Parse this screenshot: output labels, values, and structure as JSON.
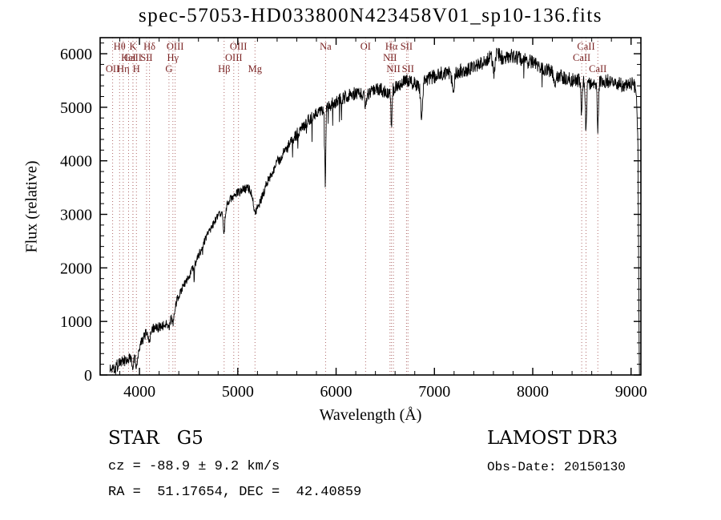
{
  "colors": {
    "spectrum": "#000000",
    "marker_line": "#b06a6a",
    "marker_label": "#7a2222",
    "axis": "#000000",
    "background": "#ffffff"
  },
  "chart_data": {
    "type": "line",
    "title": "spec-57053-HD033800N423458V01_sp10-136.fits",
    "xlabel": "Wavelength (Å)",
    "ylabel": "Flux (relative)",
    "xlim": [
      3600,
      9100
    ],
    "ylim": [
      0,
      6300
    ],
    "xticks": [
      4000,
      5000,
      6000,
      7000,
      8000,
      9000
    ],
    "yticks": [
      0,
      1000,
      2000,
      3000,
      4000,
      5000,
      6000
    ],
    "x_minor_step": 200,
    "y_minor_step": 200,
    "legend": "none",
    "grid": "off",
    "continuum": [
      [
        3700,
        130
      ],
      [
        3715,
        70
      ],
      [
        3730,
        180
      ],
      [
        3745,
        120
      ],
      [
        3760,
        220
      ],
      [
        3775,
        170
      ],
      [
        3790,
        250
      ],
      [
        3810,
        230
      ],
      [
        3830,
        290
      ],
      [
        3850,
        270
      ],
      [
        3870,
        310
      ],
      [
        3890,
        300
      ],
      [
        3910,
        330
      ],
      [
        3930,
        300
      ],
      [
        3950,
        340
      ],
      [
        3970,
        330
      ],
      [
        3990,
        430
      ],
      [
        4010,
        560
      ],
      [
        4030,
        650
      ],
      [
        4050,
        720
      ],
      [
        4070,
        770
      ],
      [
        4090,
        790
      ],
      [
        4110,
        780
      ],
      [
        4130,
        850
      ],
      [
        4150,
        870
      ],
      [
        4170,
        880
      ],
      [
        4190,
        890
      ],
      [
        4210,
        905
      ],
      [
        4230,
        920
      ],
      [
        4250,
        940
      ],
      [
        4270,
        975
      ],
      [
        4290,
        1020
      ],
      [
        4310,
        1080
      ],
      [
        4330,
        1140
      ],
      [
        4350,
        1230
      ],
      [
        4370,
        1330
      ],
      [
        4390,
        1440
      ],
      [
        4410,
        1530
      ],
      [
        4440,
        1640
      ],
      [
        4470,
        1740
      ],
      [
        4500,
        1840
      ],
      [
        4530,
        1940
      ],
      [
        4560,
        2060
      ],
      [
        4590,
        2180
      ],
      [
        4620,
        2320
      ],
      [
        4650,
        2450
      ],
      [
        4680,
        2570
      ],
      [
        4710,
        2690
      ],
      [
        4740,
        2790
      ],
      [
        4770,
        2880
      ],
      [
        4800,
        2960
      ],
      [
        4830,
        3010
      ],
      [
        4860,
        3060
      ],
      [
        4890,
        3160
      ],
      [
        4920,
        3260
      ],
      [
        4950,
        3330
      ],
      [
        4980,
        3380
      ],
      [
        5010,
        3410
      ],
      [
        5040,
        3440
      ],
      [
        5070,
        3470
      ],
      [
        5100,
        3490
      ],
      [
        5130,
        3460
      ],
      [
        5160,
        3350
      ],
      [
        5190,
        3200
      ],
      [
        5220,
        3200
      ],
      [
        5250,
        3340
      ],
      [
        5280,
        3500
      ],
      [
        5310,
        3640
      ],
      [
        5340,
        3760
      ],
      [
        5370,
        3870
      ],
      [
        5400,
        3960
      ],
      [
        5440,
        4070
      ],
      [
        5480,
        4180
      ],
      [
        5520,
        4290
      ],
      [
        5560,
        4400
      ],
      [
        5600,
        4500
      ],
      [
        5640,
        4590
      ],
      [
        5680,
        4670
      ],
      [
        5720,
        4750
      ],
      [
        5760,
        4830
      ],
      [
        5800,
        4900
      ],
      [
        5840,
        4960
      ],
      [
        5880,
        5000
      ],
      [
        5920,
        5030
      ],
      [
        5960,
        5070
      ],
      [
        6000,
        5110
      ],
      [
        6050,
        5160
      ],
      [
        6100,
        5200
      ],
      [
        6150,
        5230
      ],
      [
        6200,
        5260
      ],
      [
        6250,
        5240
      ],
      [
        6300,
        5220
      ],
      [
        6350,
        5300
      ],
      [
        6400,
        5360
      ],
      [
        6450,
        5330
      ],
      [
        6500,
        5300
      ],
      [
        6550,
        5280
      ],
      [
        6600,
        5380
      ],
      [
        6650,
        5440
      ],
      [
        6700,
        5490
      ],
      [
        6750,
        5480
      ],
      [
        6800,
        5440
      ],
      [
        6850,
        5380
      ],
      [
        6900,
        5480
      ],
      [
        6950,
        5540
      ],
      [
        7000,
        5580
      ],
      [
        7050,
        5620
      ],
      [
        7100,
        5650
      ],
      [
        7150,
        5660
      ],
      [
        7200,
        5620
      ],
      [
        7250,
        5660
      ],
      [
        7300,
        5700
      ],
      [
        7350,
        5730
      ],
      [
        7400,
        5760
      ],
      [
        7450,
        5800
      ],
      [
        7500,
        5850
      ],
      [
        7550,
        5910
      ],
      [
        7600,
        5980
      ],
      [
        7640,
        6010
      ],
      [
        7680,
        5930
      ],
      [
        7720,
        5950
      ],
      [
        7760,
        5960
      ],
      [
        7800,
        5940
      ],
      [
        7850,
        5920
      ],
      [
        7900,
        5890
      ],
      [
        7950,
        5860
      ],
      [
        8000,
        5840
      ],
      [
        8050,
        5800
      ],
      [
        8100,
        5750
      ],
      [
        8150,
        5700
      ],
      [
        8200,
        5650
      ],
      [
        8250,
        5600
      ],
      [
        8300,
        5560
      ],
      [
        8350,
        5530
      ],
      [
        8400,
        5510
      ],
      [
        8450,
        5500
      ],
      [
        8500,
        5480
      ],
      [
        8550,
        5460
      ],
      [
        8600,
        5450
      ],
      [
        8650,
        5450
      ],
      [
        8700,
        5470
      ],
      [
        8750,
        5490
      ],
      [
        8800,
        5480
      ],
      [
        8850,
        5450
      ],
      [
        8900,
        5420
      ],
      [
        8950,
        5400
      ],
      [
        9000,
        5440
      ],
      [
        9030,
        5420
      ],
      [
        9055,
        5300
      ],
      [
        9070,
        4200
      ],
      [
        9080,
        1200
      ]
    ],
    "absorption_features": [
      {
        "line": "CaII K",
        "wavelength": 3934,
        "depth": 140,
        "width": 7
      },
      {
        "line": "CaII H",
        "wavelength": 3969,
        "depth": 140,
        "width": 7
      },
      {
        "line": "Hδ",
        "wavelength": 4102,
        "depth": 180,
        "width": 9
      },
      {
        "line": "G",
        "wavelength": 4300,
        "depth": 160,
        "width": 14
      },
      {
        "line": "Hγ",
        "wavelength": 4340,
        "depth": 230,
        "width": 9
      },
      {
        "line": "Hβ",
        "wavelength": 4861,
        "depth": 380,
        "width": 8
      },
      {
        "line": "Mg",
        "wavelength": 5175,
        "depth": 200,
        "width": 16
      },
      {
        "line": "Na",
        "wavelength": 5890,
        "depth": 1450,
        "width": 5
      },
      {
        "line": "OI",
        "wavelength": 6300,
        "depth": 180,
        "width": 7
      },
      {
        "line": "Hα",
        "wavelength": 6563,
        "depth": 650,
        "width": 6
      },
      {
        "line": "telluric",
        "wavelength": 6870,
        "depth": 620,
        "width": 9
      },
      {
        "line": "telluric",
        "wavelength": 7190,
        "depth": 260,
        "width": 12
      },
      {
        "line": "telluric",
        "wavelength": 7605,
        "depth": 380,
        "width": 10
      },
      {
        "line": "telluric",
        "wavelength": 8230,
        "depth": 250,
        "width": 10
      },
      {
        "line": "CaII",
        "wavelength": 8498,
        "depth": 650,
        "width": 6
      },
      {
        "line": "CaII",
        "wavelength": 8542,
        "depth": 900,
        "width": 6
      },
      {
        "line": "CaII",
        "wavelength": 8662,
        "depth": 850,
        "width": 6
      }
    ],
    "noise": {
      "seed": 1337,
      "base": 22,
      "flux_frac": 0.02,
      "blue_edge": 4700,
      "blue_factor": 0.1,
      "spike_prob": 0.012,
      "spike_scale": 3.0
    },
    "spectral_lines": [
      {
        "label": "OII",
        "wavelength": 3727,
        "row": 3
      },
      {
        "label": "Hθ",
        "wavelength": 3798,
        "row": 1
      },
      {
        "label": "Hη",
        "wavelength": 3835,
        "row": 3
      },
      {
        "label": "HeI",
        "wavelength": 3889,
        "row": 2
      },
      {
        "label": "CaII",
        "wavelength": 3933,
        "row": 2
      },
      {
        "label": "K",
        "wavelength": 3934,
        "row": 1
      },
      {
        "label": "H",
        "wavelength": 3969,
        "row": 3
      },
      {
        "label": "SII",
        "wavelength": 4072,
        "row": 2
      },
      {
        "label": "Hδ",
        "wavelength": 4102,
        "row": 1
      },
      {
        "label": "G",
        "wavelength": 4300,
        "row": 3
      },
      {
        "label": "Hγ",
        "wavelength": 4340,
        "row": 2
      },
      {
        "label": "OIII",
        "wavelength": 4363,
        "row": 1
      },
      {
        "label": "Hβ",
        "wavelength": 4861,
        "row": 3
      },
      {
        "label": "OIII",
        "wavelength": 4959,
        "row": 2
      },
      {
        "label": "OIII",
        "wavelength": 5007,
        "row": 1
      },
      {
        "label": "Mg",
        "wavelength": 5175,
        "row": 3
      },
      {
        "label": "Na",
        "wavelength": 5893,
        "row": 1
      },
      {
        "label": "OI",
        "wavelength": 6300,
        "row": 1
      },
      {
        "label": "NII",
        "wavelength": 6548,
        "row": 2
      },
      {
        "label": "Hα",
        "wavelength": 6563,
        "row": 1
      },
      {
        "label": "NII",
        "wavelength": 6583,
        "row": 3
      },
      {
        "label": "SII",
        "wavelength": 6716,
        "row": 1
      },
      {
        "label": "SII",
        "wavelength": 6731,
        "row": 3
      },
      {
        "label": "CaII",
        "wavelength": 8498,
        "row": 2
      },
      {
        "label": "CaII",
        "wavelength": 8542,
        "row": 1
      },
      {
        "label": "CaII",
        "wavelength": 8662,
        "row": 3
      }
    ]
  },
  "footer": {
    "class_line": "STAR   G5",
    "cz_line": "cz = -88.9 ± 9.2 km/s",
    "radec_line": "RA =  51.17654, DEC =  42.40859",
    "survey": "LAMOST DR3",
    "obsdate": "Obs-Date: 20150130"
  }
}
